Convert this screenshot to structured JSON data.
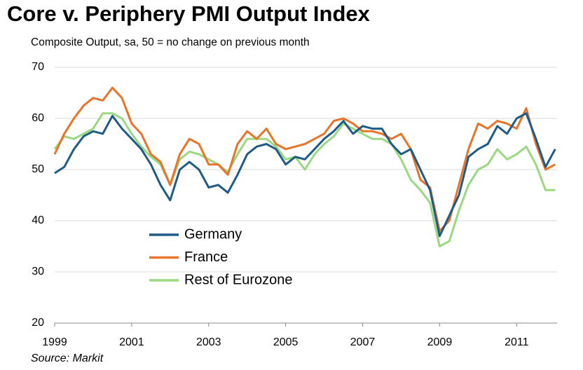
{
  "chart_data": {
    "type": "line",
    "title": "Core v. Periphery PMI Output Index",
    "subtitle": "Composite Output, sa, 50 = no change on previous month",
    "source": "Source: Markit",
    "x": [
      1999,
      1999.25,
      1999.5,
      1999.75,
      2000,
      2000.25,
      2000.5,
      2000.75,
      2001,
      2001.25,
      2001.5,
      2001.75,
      2002,
      2002.25,
      2002.5,
      2002.75,
      2003,
      2003.25,
      2003.5,
      2003.75,
      2004,
      2004.25,
      2004.5,
      2004.75,
      2005,
      2005.25,
      2005.5,
      2005.75,
      2006,
      2006.25,
      2006.5,
      2006.75,
      2007,
      2007.25,
      2007.5,
      2007.75,
      2008,
      2008.25,
      2008.5,
      2008.75,
      2009,
      2009.25,
      2009.5,
      2009.75,
      2010,
      2010.25,
      2010.5,
      2010.75,
      2011,
      2011.25,
      2011.5,
      2011.75,
      2012
    ],
    "series": [
      {
        "name": "Germany",
        "color": "#1f5b87",
        "values": [
          49.3,
          50.5,
          54,
          56.5,
          57.5,
          57,
          60.5,
          58,
          56,
          54,
          51,
          47,
          44,
          50,
          51.5,
          50,
          46.5,
          47,
          45.5,
          49,
          53,
          54.5,
          55,
          54,
          51,
          52.5,
          52,
          54,
          56,
          57.5,
          59.5,
          57,
          58.5,
          58,
          58,
          55,
          53,
          54,
          50,
          46,
          37,
          41,
          45,
          52.5,
          54,
          55,
          58.5,
          57,
          60,
          61,
          56,
          50.5,
          54
        ]
      },
      {
        "name": "France",
        "color": "#e8742a",
        "values": [
          53,
          57,
          60,
          62.5,
          64,
          63.5,
          66,
          64,
          59,
          57,
          53,
          51.5,
          47,
          53,
          56,
          55,
          51,
          51,
          49,
          55,
          57.5,
          56,
          58,
          55,
          54,
          54.5,
          55,
          56,
          57,
          59.5,
          60,
          59,
          57.5,
          57.5,
          57,
          56,
          57,
          54,
          48,
          46.5,
          38,
          40,
          47,
          54,
          59,
          58,
          59.5,
          59,
          58,
          62,
          55,
          50,
          51
        ]
      },
      {
        "name": "Rest of Eurozone",
        "color": "#9bd882",
        "values": [
          54,
          56.5,
          56,
          57,
          58,
          61,
          61,
          60,
          57,
          54.5,
          52.5,
          51,
          47,
          52,
          53.5,
          53,
          52,
          51,
          49.5,
          53,
          56,
          56,
          56,
          54.5,
          52,
          52.5,
          50,
          53,
          55,
          56.5,
          59,
          58,
          57,
          56,
          56,
          55,
          52,
          48,
          46,
          43.5,
          35,
          36,
          42,
          47,
          50,
          51,
          54,
          52,
          53,
          54.5,
          51,
          46,
          46
        ]
      }
    ],
    "xlim": [
      1999,
      2012.05
    ],
    "xticks": [
      1999,
      2001,
      2003,
      2005,
      2007,
      2009,
      2011
    ],
    "ylim": [
      20,
      70
    ],
    "yticks": [
      20,
      30,
      40,
      50,
      60,
      70
    ],
    "grid": true
  }
}
